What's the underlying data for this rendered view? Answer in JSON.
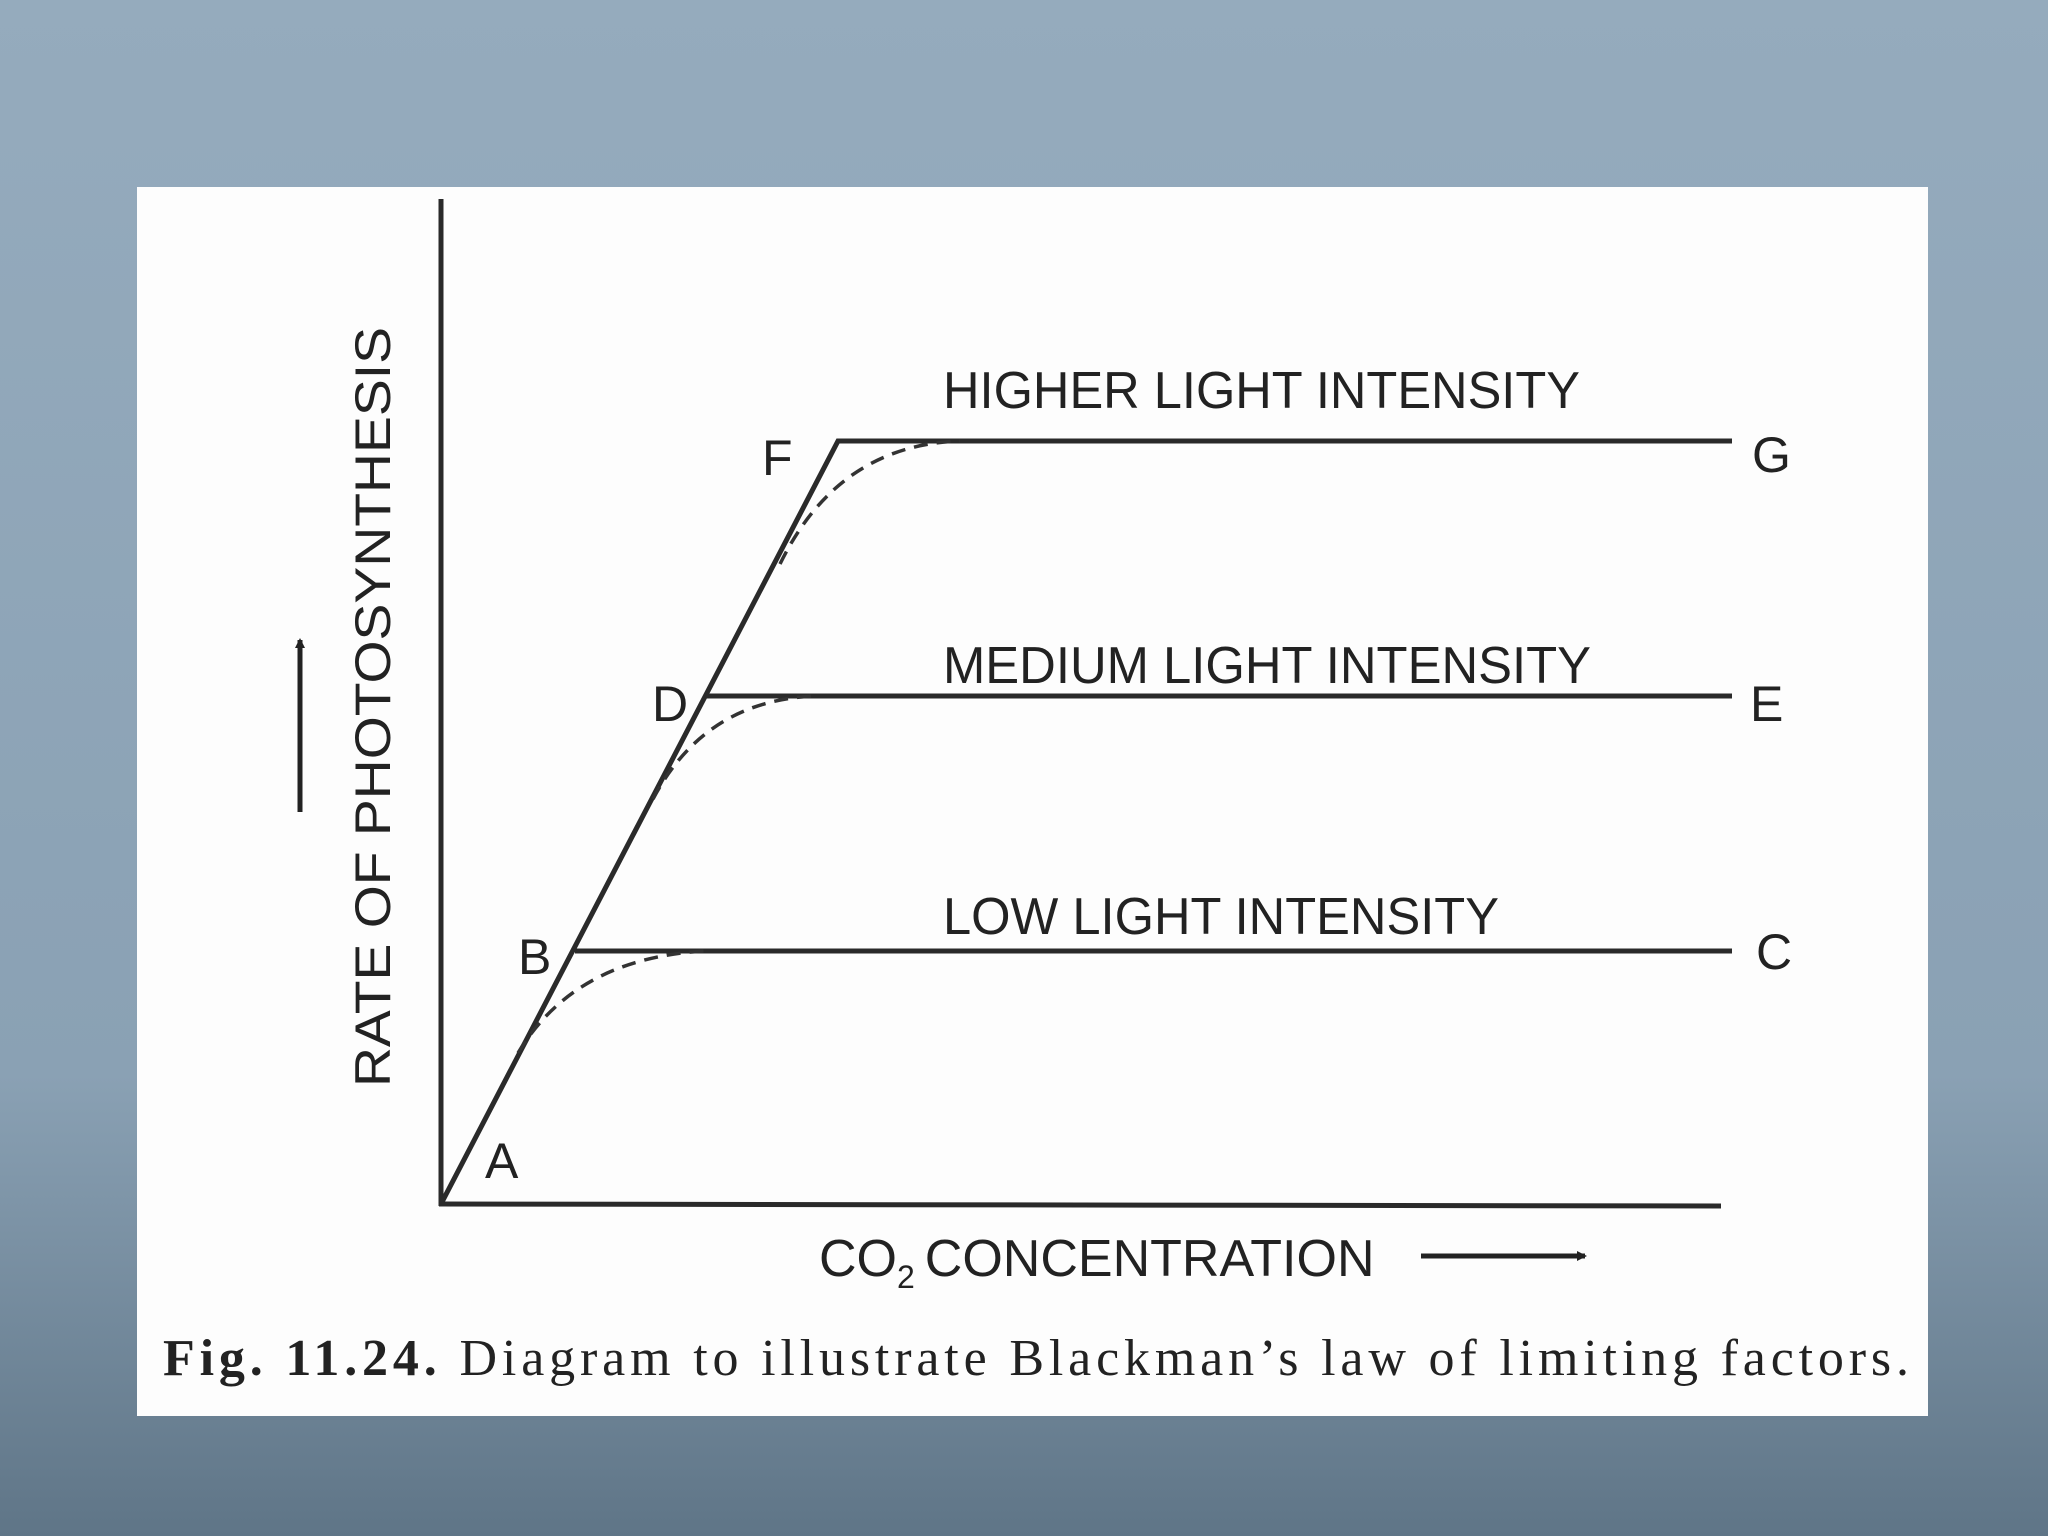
{
  "y_axis": {
    "label": "RATE OF PHOTOSYNTHESIS"
  },
  "x_axis": {
    "prefix": "CO",
    "subscript": "2",
    "suffix": "CONCENTRATION"
  },
  "curves": [
    {
      "label": "HIGHER LIGHT INTENSITY",
      "start": "F",
      "end": "G"
    },
    {
      "label": "MEDIUM LIGHT INTENSITY",
      "start": "D",
      "end": "E"
    },
    {
      "label": "LOW LIGHT INTENSITY",
      "start": "B",
      "end": "C"
    }
  ],
  "origin_point": "A",
  "caption": {
    "number": "Fig. 11.24.",
    "text": "Diagram to illustrate Blackman’s law of limiting factors."
  }
}
